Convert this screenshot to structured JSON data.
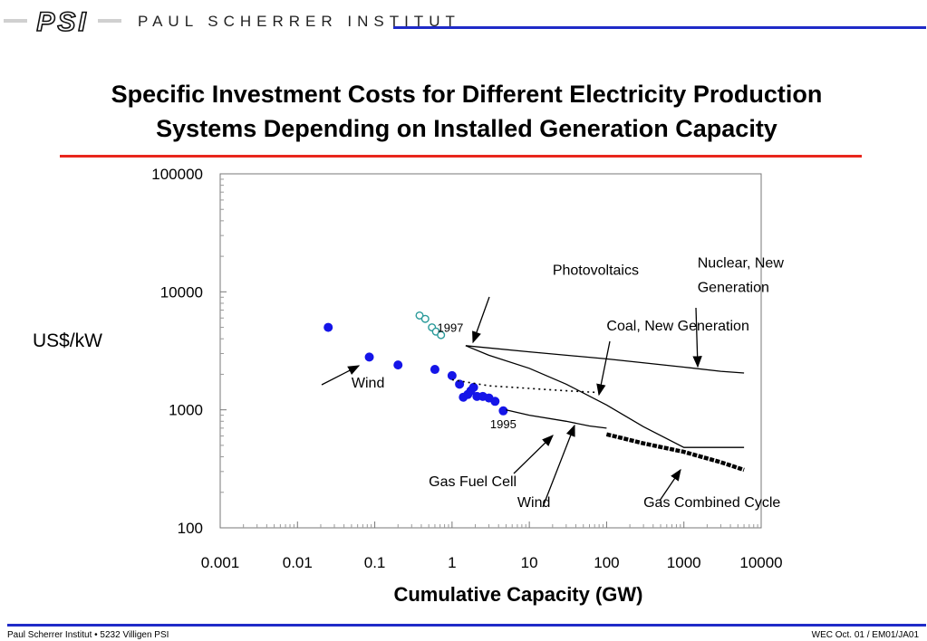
{
  "header": {
    "logo_text": "PSI",
    "institute_name": "PAUL SCHERRER INSTITUT"
  },
  "title": {
    "line1": "Specific Investment Costs for Different Electricity Production",
    "line2": "Systems Depending on Installed Generation Capacity"
  },
  "chart_data": {
    "type": "scatter",
    "xlabel": "Cumulative Capacity (GW)",
    "ylabel": "US$/kW",
    "x_scale": "log",
    "y_scale": "log",
    "xlim": [
      0.001,
      10000
    ],
    "ylim": [
      100,
      100000
    ],
    "x_ticks": [
      "0.001",
      "0.01",
      "0.1",
      "1",
      "10",
      "100",
      "1000",
      "10000"
    ],
    "y_ticks": [
      "100",
      "1000",
      "10000",
      "100000"
    ],
    "grid": false,
    "series": [
      {
        "name": "Photovoltaics",
        "kind": "open-markers",
        "color": "#2a9a9a",
        "points": [
          [
            0.38,
            6300
          ],
          [
            0.45,
            5900
          ],
          [
            0.55,
            5000
          ],
          [
            0.62,
            4600
          ],
          [
            0.72,
            4300
          ]
        ]
      },
      {
        "name": "Photovoltaics",
        "kind": "line",
        "color": "#000000",
        "points": [
          [
            1.5,
            3500
          ],
          [
            3,
            2900
          ],
          [
            10,
            2250
          ],
          [
            30,
            1650
          ],
          [
            100,
            1100
          ],
          [
            300,
            720
          ],
          [
            1000,
            480
          ],
          [
            6000,
            480
          ]
        ]
      },
      {
        "name": "Wind",
        "kind": "filled-markers",
        "color": "#1515e8",
        "points": [
          [
            0.025,
            5000
          ],
          [
            0.085,
            2800
          ],
          [
            0.2,
            2400
          ],
          [
            0.6,
            2200
          ],
          [
            1.0,
            1950
          ],
          [
            1.25,
            1650
          ],
          [
            1.4,
            1280
          ],
          [
            1.6,
            1350
          ],
          [
            1.75,
            1450
          ],
          [
            1.9,
            1550
          ],
          [
            2.1,
            1300
          ],
          [
            2.5,
            1300
          ],
          [
            3.0,
            1260
          ],
          [
            3.6,
            1180
          ],
          [
            4.6,
            980
          ]
        ]
      },
      {
        "name": "Wind",
        "kind": "line",
        "color": "#000000",
        "points": [
          [
            5,
            1000
          ],
          [
            10,
            900
          ],
          [
            30,
            800
          ],
          [
            60,
            730
          ],
          [
            100,
            700
          ]
        ]
      },
      {
        "name": "Nuclear, New Generation",
        "kind": "line",
        "color": "#000000",
        "points": [
          [
            1.5,
            3500
          ],
          [
            10,
            3100
          ],
          [
            100,
            2700
          ],
          [
            1000,
            2300
          ],
          [
            3000,
            2120
          ],
          [
            6000,
            2050
          ]
        ]
      },
      {
        "name": "Coal, New Generation",
        "kind": "dotted-line",
        "color": "#000000",
        "points": [
          [
            1.0,
            1800
          ],
          [
            3,
            1600
          ],
          [
            10,
            1520
          ],
          [
            30,
            1450
          ],
          [
            80,
            1400
          ]
        ]
      },
      {
        "name": "Gas Combined Cycle",
        "kind": "thick-line",
        "color": "#000000",
        "points": [
          [
            100,
            620
          ],
          [
            300,
            520
          ],
          [
            1000,
            440
          ],
          [
            3000,
            360
          ],
          [
            6000,
            310
          ]
        ]
      }
    ],
    "annotations": [
      {
        "text": "Photovoltaics",
        "x": 20,
        "y": 14000
      },
      {
        "text": "Nuclear, New",
        "x": 1500,
        "y": 16000
      },
      {
        "text": "Generation",
        "x": 1500,
        "y": 10000
      },
      {
        "text": "Coal, New Generation",
        "x": 100,
        "y": 4700
      },
      {
        "text": "1997",
        "x": 0.95,
        "y": 4600
      },
      {
        "text": "1995",
        "x": 4.6,
        "y": 700
      },
      {
        "text": "Wind",
        "x": 0.05,
        "y": 1550
      },
      {
        "text": "Gas Fuel Cell",
        "x": 0.5,
        "y": 225
      },
      {
        "text": "Wind",
        "x": 7,
        "y": 150
      },
      {
        "text": "Gas Combined Cycle",
        "x": 300,
        "y": 150
      }
    ]
  },
  "footer": {
    "left": "Paul Scherrer Institut • 5232 Villigen PSI",
    "right": "WEC Oct. 01 / EM01/JA01"
  },
  "colors": {
    "header_rule": "#1f2bc8",
    "title_rule": "#e8261c",
    "wind_markers": "#1515e8",
    "pv_markers": "#2a9a9a"
  }
}
